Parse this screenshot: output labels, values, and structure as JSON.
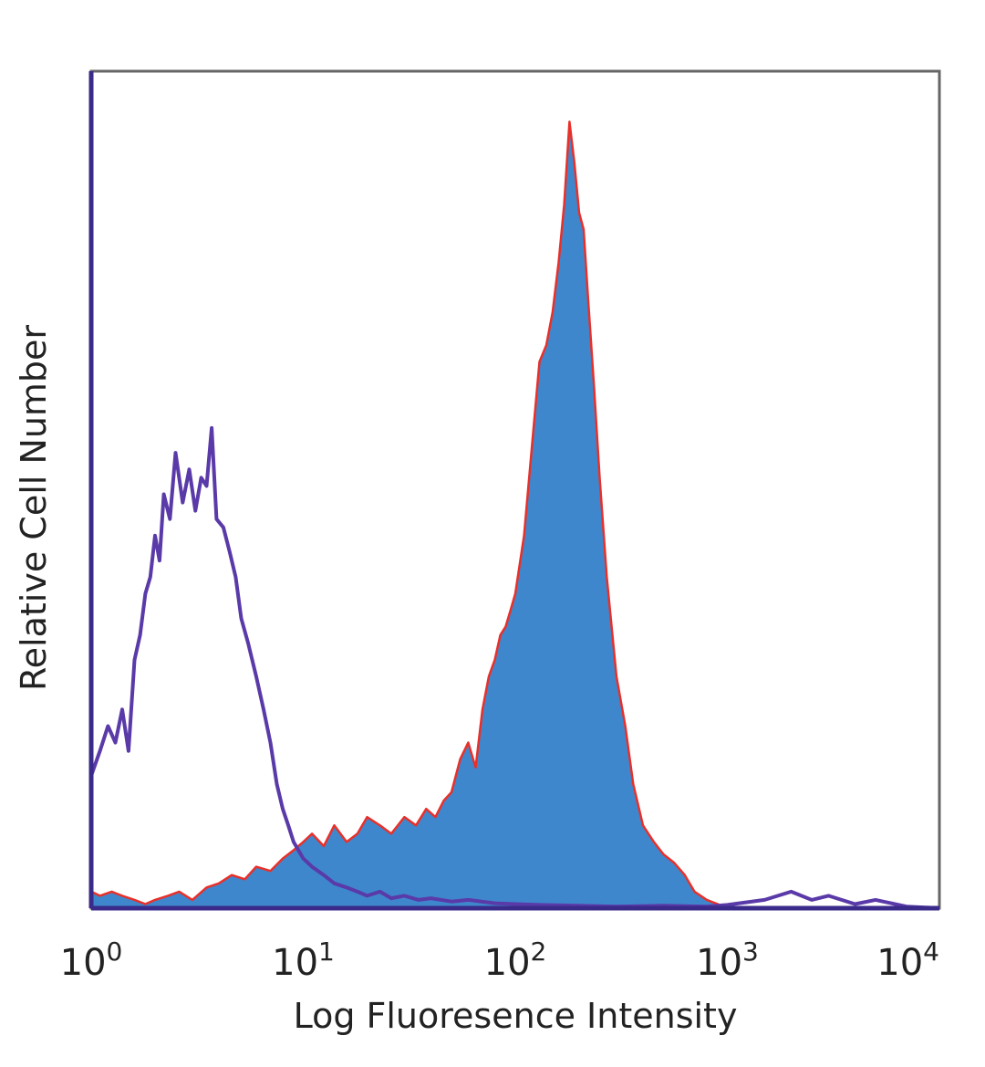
{
  "chart_data": {
    "type": "area",
    "title": "",
    "xlabel": "Log Fluoresence Intensity",
    "ylabel": "Relative Cell Number",
    "xscale": "log",
    "xlim": [
      1,
      10000
    ],
    "ylim": [
      0,
      1
    ],
    "grid": false,
    "legend": "none",
    "x_ticks": [
      {
        "base": "10",
        "exp": "0"
      },
      {
        "base": "10",
        "exp": "1"
      },
      {
        "base": "10",
        "exp": "2"
      },
      {
        "base": "10",
        "exp": "3"
      },
      {
        "base": "10",
        "exp": "4"
      }
    ],
    "series": [
      {
        "style": "filled",
        "fill": "#3f87cc",
        "stroke": "#e8302a",
        "x": [
          1,
          1.1,
          1.25,
          1.4,
          1.6,
          1.8,
          2.0,
          2.3,
          2.6,
          3.0,
          3.5,
          4.0,
          4.6,
          5.3,
          6.0,
          7.0,
          8.0,
          9.0,
          10.0,
          11.0,
          12.5,
          14,
          16,
          18,
          20,
          23,
          26,
          30,
          34,
          38,
          42,
          46,
          50,
          55,
          60,
          65,
          70,
          75,
          80,
          85,
          90,
          95,
          100,
          110,
          120,
          130,
          140,
          150,
          160,
          170,
          180,
          190,
          200,
          210,
          220,
          235,
          250,
          270,
          300,
          330,
          360,
          400,
          450,
          500,
          560,
          630,
          700,
          800,
          900,
          1000,
          1200,
          1500,
          2000,
          3000,
          5000,
          10000
        ],
        "y": [
          0.02,
          0.015,
          0.02,
          0.015,
          0.01,
          0.005,
          0.01,
          0.015,
          0.02,
          0.01,
          0.025,
          0.03,
          0.04,
          0.035,
          0.05,
          0.045,
          0.06,
          0.07,
          0.08,
          0.09,
          0.075,
          0.1,
          0.08,
          0.09,
          0.11,
          0.1,
          0.09,
          0.11,
          0.1,
          0.12,
          0.11,
          0.13,
          0.14,
          0.18,
          0.2,
          0.17,
          0.24,
          0.28,
          0.3,
          0.33,
          0.34,
          0.36,
          0.38,
          0.45,
          0.56,
          0.66,
          0.68,
          0.72,
          0.78,
          0.85,
          0.95,
          0.9,
          0.84,
          0.82,
          0.74,
          0.63,
          0.52,
          0.4,
          0.28,
          0.22,
          0.15,
          0.1,
          0.08,
          0.065,
          0.055,
          0.04,
          0.02,
          0.01,
          0.005,
          0.0,
          0.0,
          0.0,
          0.0,
          0.0,
          0.0,
          0.0
        ]
      },
      {
        "style": "outline",
        "stroke": "#5a3aa8",
        "x": [
          1,
          1.1,
          1.2,
          1.3,
          1.4,
          1.5,
          1.6,
          1.7,
          1.8,
          1.9,
          2.0,
          2.1,
          2.2,
          2.35,
          2.5,
          2.7,
          2.9,
          3.1,
          3.3,
          3.5,
          3.7,
          3.9,
          4.2,
          4.5,
          4.8,
          5.1,
          5.5,
          6.0,
          6.5,
          7.0,
          7.5,
          8.0,
          8.5,
          9.0,
          10.0,
          11.0,
          12.5,
          14,
          16,
          18,
          20,
          23,
          26,
          30,
          35,
          40,
          50,
          60,
          80,
          100,
          130,
          200,
          300,
          500,
          800,
          1000,
          1500,
          2000,
          2500,
          3000,
          4000,
          5000,
          7000,
          10000
        ],
        "y": [
          0.16,
          0.19,
          0.22,
          0.2,
          0.24,
          0.19,
          0.3,
          0.33,
          0.38,
          0.4,
          0.45,
          0.42,
          0.5,
          0.47,
          0.55,
          0.49,
          0.53,
          0.48,
          0.52,
          0.51,
          0.58,
          0.47,
          0.46,
          0.43,
          0.4,
          0.35,
          0.32,
          0.28,
          0.24,
          0.2,
          0.15,
          0.12,
          0.1,
          0.08,
          0.06,
          0.05,
          0.04,
          0.03,
          0.025,
          0.02,
          0.015,
          0.02,
          0.012,
          0.015,
          0.01,
          0.012,
          0.008,
          0.01,
          0.006,
          0.005,
          0.004,
          0.003,
          0.002,
          0.003,
          0.002,
          0.004,
          0.01,
          0.02,
          0.01,
          0.015,
          0.005,
          0.01,
          0.002,
          0.0
        ]
      }
    ]
  }
}
